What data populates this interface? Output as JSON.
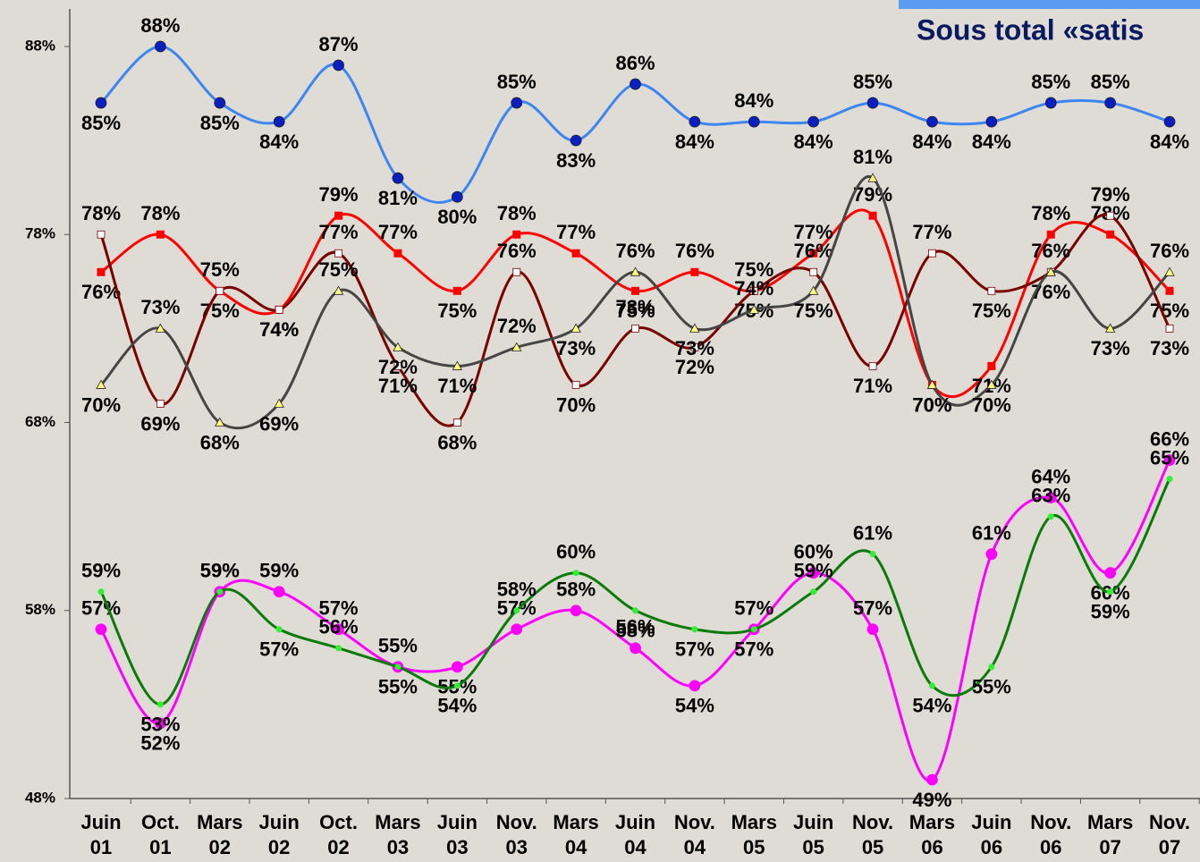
{
  "chart_data": {
    "type": "line",
    "title": "Sous total «satis",
    "categories": [
      "Juin 01",
      "Oct. 01",
      "Mars 02",
      "Juin 02",
      "Oct. 02",
      "Mars 03",
      "Juin 03",
      "Nov. 03",
      "Mars 04",
      "Juin 04",
      "Nov. 04",
      "Mars 05",
      "Juin 05",
      "Nov. 05",
      "Mars 06",
      "Juin 06",
      "Nov. 06",
      "Mars 07",
      "Nov. 07"
    ],
    "ylim": [
      48,
      88
    ],
    "yticks": [
      {
        "value": 48,
        "label": "48%"
      },
      {
        "value": 58,
        "label": "58%"
      },
      {
        "value": 68,
        "label": "68%"
      },
      {
        "value": 78,
        "label": "78%"
      },
      {
        "value": 88,
        "label": "88%"
      }
    ],
    "grid": false,
    "series": [
      {
        "color": "#3d85f0",
        "marker": "circle",
        "marker_color": "#0a1fc0",
        "values": [
          85,
          88,
          85,
          84,
          87,
          81,
          80,
          85,
          83,
          86,
          84,
          84,
          84,
          85,
          84,
          84,
          85,
          85,
          84
        ],
        "value_labels": [
          "85%",
          "88%",
          "85%",
          "84%",
          "87%",
          "81%",
          "80%",
          "85%",
          "83%",
          "86%",
          "84%",
          "84%",
          "84%",
          "85%",
          "84%",
          "84%",
          "85%",
          "85%",
          "84%"
        ]
      },
      {
        "color": "#ff0000",
        "marker": "square",
        "marker_color": "#ff0000",
        "values": [
          76,
          78,
          75,
          74,
          79,
          77,
          75,
          78,
          77,
          75,
          76,
          75,
          77,
          79,
          70,
          71,
          78,
          78,
          75
        ],
        "value_labels": [
          "76%",
          "78%",
          "75%",
          "74%",
          "79%",
          "77%",
          "75%",
          "78%",
          "77%",
          "75%",
          "76%",
          "75%",
          "77%",
          "79%",
          "70%",
          "71%",
          "78%",
          "78%",
          "75%"
        ]
      },
      {
        "color": "#7a0000",
        "marker": "hollow-square",
        "marker_color": "#ffffff",
        "values": [
          78,
          69,
          75,
          74,
          77,
          71,
          68,
          76,
          70,
          73,
          72,
          75,
          76,
          71,
          77,
          75,
          76,
          79,
          73
        ],
        "value_labels": [
          "78%",
          "69%",
          "75%",
          "74%",
          "77%",
          "71%",
          "68%",
          "76%",
          "70%",
          "73%",
          "72%",
          "75%",
          "76%",
          "71%",
          "77%",
          "75%",
          "76%",
          "79%",
          "73%"
        ]
      },
      {
        "color": "#454545",
        "marker": "triangle",
        "marker_color": "#ffff80",
        "values": [
          70,
          73,
          68,
          69,
          75,
          72,
          71,
          72,
          73,
          76,
          73,
          74,
          75,
          81,
          70,
          70,
          76,
          73,
          76
        ],
        "value_labels": [
          "70%",
          "73%",
          "68%",
          "69%",
          "75%",
          "72%",
          "71%",
          "72%",
          "73%",
          "76%",
          "73%",
          "74%",
          "75%",
          "81%",
          "70%",
          "70%",
          "76%",
          "73%",
          "76%"
        ]
      },
      {
        "color": "#ff00ff",
        "marker": "big-circle",
        "marker_color": "#ff00ff",
        "values": [
          57,
          52,
          59,
          59,
          57,
          55,
          55,
          57,
          58,
          56,
          54,
          57,
          60,
          57,
          49,
          61,
          64,
          60,
          66
        ],
        "value_labels": [
          "57%",
          "52%",
          "59%",
          "59%",
          "57%",
          "55%",
          "55%",
          "57%",
          "58%",
          "56%",
          "54%",
          "57%",
          "60%",
          "57%",
          "49%",
          "61%",
          "64%",
          "60%",
          "66%"
        ]
      },
      {
        "color": "#0a7a0a",
        "marker": "dot",
        "marker_color": "#33ee33",
        "values": [
          59,
          53,
          59,
          57,
          56,
          55,
          54,
          58,
          60,
          58,
          57,
          57,
          59,
          61,
          54,
          55,
          63,
          59,
          65
        ],
        "value_labels": [
          "59%",
          "53%",
          "59%",
          "57%",
          "56%",
          "55%",
          "54%",
          "58%",
          "60%",
          "58%",
          "57%",
          "57%",
          "59%",
          "61%",
          "54%",
          "55%",
          "63%",
          "59%",
          "65%"
        ]
      }
    ]
  }
}
